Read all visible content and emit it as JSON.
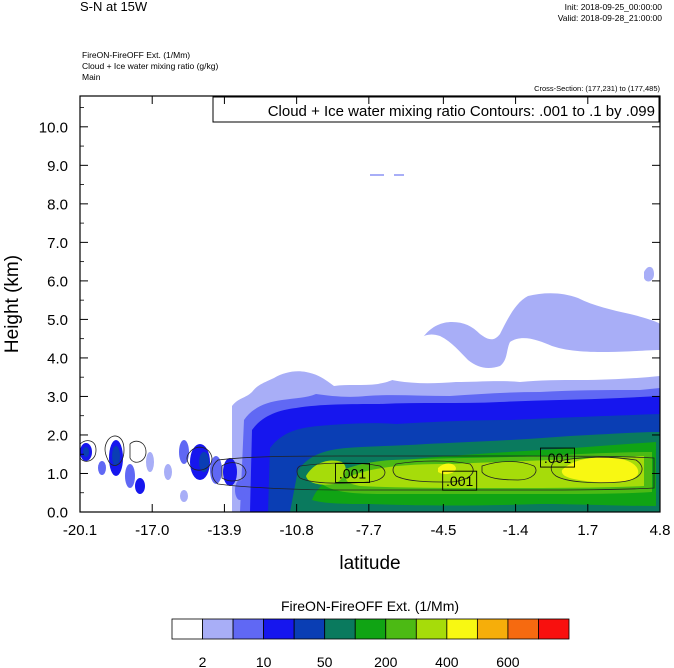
{
  "header": {
    "title": "S-N at 15W",
    "init": "Init: 2018-09-25_00:00:00",
    "valid": "Valid: 2018-09-28_21:00:00",
    "field": "FireON-FireOFF Ext.   (1/Mm)",
    "contour_field": "Cloud + Ice water mixing ratio   (g/kg)",
    "domain": "Main",
    "cross_section": "Cross-Section: (177,231) to (177,485)"
  },
  "chart_data": {
    "type": "heatmap",
    "title": "S-N at 15W",
    "xlabel": "latitude",
    "ylabel": "Height (km)",
    "x_ticks": [
      "-20.1",
      "-17.0",
      "-13.9",
      "-10.8",
      "-7.7",
      "-4.5",
      "-1.4",
      "1.7",
      "4.8"
    ],
    "y_ticks": [
      "0.0",
      "1.0",
      "2.0",
      "3.0",
      "4.0",
      "5.0",
      "6.0",
      "7.0",
      "8.0",
      "9.0",
      "10.0"
    ],
    "xlim": [
      -20.1,
      4.8
    ],
    "ylim": [
      0,
      10.8
    ],
    "contour_info": "Cloud + Ice water mixing ratio Contours: .001 to .1 by .099",
    "contour_labels": [
      {
        "text": ".001",
        "lat": -8.4,
        "height": 1.0
      },
      {
        "text": ".001",
        "lat": -3.8,
        "height": 0.8
      },
      {
        "text": ".001",
        "lat": 0.4,
        "height": 1.4
      }
    ],
    "colorbar": {
      "title": "FireON-FireOFF Ext.  (1/Mm)",
      "colors": [
        "#ffffff",
        "#a8aef7",
        "#6068f4",
        "#1616ee",
        "#0a3eb4",
        "#0a7a5e",
        "#10a414",
        "#4cba14",
        "#a6dc0a",
        "#f8f812",
        "#f6ae0a",
        "#f66a10",
        "#f8100e"
      ],
      "labels": [
        "2",
        "10",
        "50",
        "200",
        "400",
        "600"
      ]
    }
  }
}
